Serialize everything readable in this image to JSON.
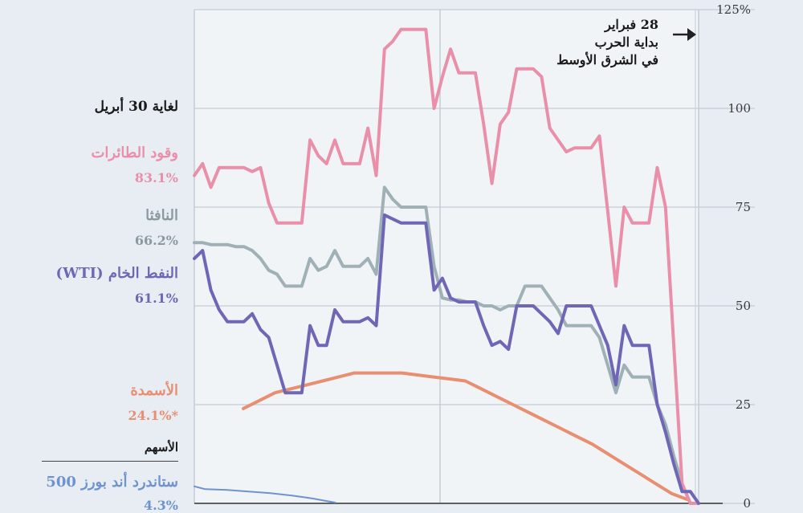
{
  "chart_data": {
    "type": "line",
    "y_unit": "%",
    "ylim": [
      0,
      125
    ],
    "y_ticks": [
      "0",
      "25",
      "50",
      "75",
      "100",
      "125%"
    ],
    "grid": true,
    "legend_placement": "left",
    "as_of_label": "لغاية 30 أبريل",
    "stocks_heading": "الأسهم",
    "annotation": [
      "28 فبراير",
      "بداية الحرب",
      "في الشرق الأوسط"
    ],
    "series": [
      {
        "name": "وقود الطائرات",
        "end_label": "83.1%",
        "color": "#e98fa9",
        "values": [
          83,
          86,
          80,
          85,
          85,
          85,
          85,
          84,
          85,
          76,
          71,
          71,
          71,
          71,
          92,
          88,
          86,
          92,
          86,
          86,
          86,
          95,
          83,
          115,
          117,
          120,
          120,
          120,
          120,
          100,
          108,
          115,
          109,
          109,
          109,
          96,
          81,
          96,
          99,
          110,
          110,
          110,
          108,
          95,
          92,
          89,
          90,
          90,
          90,
          93,
          74,
          55,
          75,
          71,
          71,
          71,
          85,
          75,
          40,
          5,
          0,
          0
        ]
      },
      {
        "name": "النافثا",
        "end_label": "66.2%",
        "color": "#9fb1b6",
        "values": [
          66,
          66,
          65.5,
          65.5,
          65.5,
          65,
          65,
          64,
          62,
          59,
          58,
          55,
          55,
          55,
          62,
          59,
          60,
          64,
          60,
          60,
          60,
          62,
          58,
          80,
          77,
          75,
          75,
          75,
          75,
          60,
          52,
          51.5,
          51.5,
          51,
          51,
          50,
          50,
          49,
          50,
          50,
          55,
          55,
          55,
          52,
          49,
          45,
          45,
          45,
          45,
          42,
          35,
          28,
          35,
          32,
          32,
          32,
          25,
          20,
          12,
          5,
          0,
          0
        ]
      },
      {
        "name": "النفط الخام (WTI)",
        "end_label": "61.1%",
        "color": "#6f67b6",
        "values": [
          62,
          64,
          54,
          49,
          46,
          46,
          46,
          48,
          44,
          42,
          35,
          28,
          28,
          28,
          45,
          40,
          40,
          49,
          46,
          46,
          46,
          47,
          45,
          73,
          72,
          71,
          71,
          71,
          71,
          54,
          57,
          52,
          51,
          51,
          51,
          45,
          40,
          41,
          39,
          50,
          50,
          50,
          48,
          46,
          43,
          50,
          50,
          50,
          50,
          45,
          40,
          30,
          45,
          40,
          40,
          40,
          25,
          18,
          10,
          3,
          3,
          0
        ]
      },
      {
        "name": "الأسمدة",
        "end_label": "24.1%*",
        "color": "#e88f72",
        "x_start": 5,
        "values": [
          24,
          26,
          28,
          29,
          30,
          31,
          32,
          33,
          33,
          33,
          33,
          32.5,
          32,
          31.5,
          31,
          29,
          27,
          25,
          23,
          21,
          19,
          17,
          15,
          12.5,
          10,
          7.5,
          5,
          2.5,
          1
        ]
      },
      {
        "name": "ستاندرد أند بورز 500",
        "end_label": "4.3%",
        "color": "#6f93cf",
        "values": [
          4.3,
          3.6,
          3.5,
          3.4,
          3.2,
          3.0,
          2.8,
          2.6,
          2.3,
          2.0,
          1.6,
          1.2,
          0.7,
          0.2
        ]
      }
    ]
  }
}
